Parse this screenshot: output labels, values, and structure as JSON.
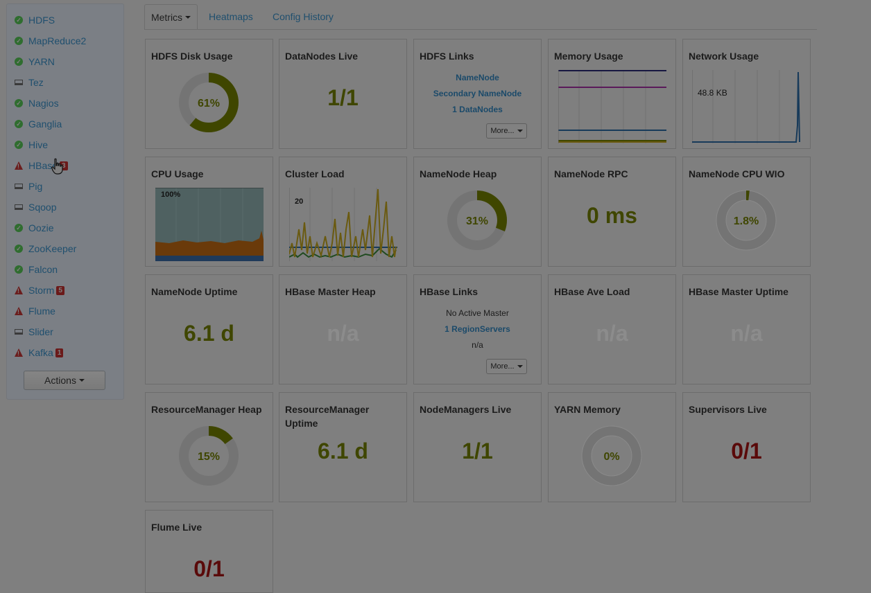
{
  "services": [
    {
      "name": "HDFS",
      "status": "ok"
    },
    {
      "name": "MapReduce2",
      "status": "ok"
    },
    {
      "name": "YARN",
      "status": "ok"
    },
    {
      "name": "Tez",
      "status": "client"
    },
    {
      "name": "Nagios",
      "status": "ok"
    },
    {
      "name": "Ganglia",
      "status": "ok"
    },
    {
      "name": "Hive",
      "status": "ok"
    },
    {
      "name": "HBase",
      "status": "alert",
      "badge": "3"
    },
    {
      "name": "Pig",
      "status": "client"
    },
    {
      "name": "Sqoop",
      "status": "client"
    },
    {
      "name": "Oozie",
      "status": "ok"
    },
    {
      "name": "ZooKeeper",
      "status": "ok"
    },
    {
      "name": "Falcon",
      "status": "ok"
    },
    {
      "name": "Storm",
      "status": "alert",
      "badge": "5"
    },
    {
      "name": "Flume",
      "status": "alert"
    },
    {
      "name": "Slider",
      "status": "client"
    },
    {
      "name": "Kafka",
      "status": "alert",
      "badge": "1"
    }
  ],
  "actions_label": "Actions",
  "tabs": {
    "metrics": "Metrics",
    "heatmaps": "Heatmaps",
    "config_history": "Config History"
  },
  "widgets": {
    "hdfs_disk": {
      "title": "HDFS Disk Usage",
      "value": "61%",
      "fraction": 0.61
    },
    "datanodes": {
      "title": "DataNodes Live",
      "value": "1/1"
    },
    "hdfs_links": {
      "title": "HDFS Links",
      "namenode": "NameNode",
      "secondary": "Secondary NameNode",
      "datanodes": "1 DataNodes",
      "more": "More..."
    },
    "memory": {
      "title": "Memory Usage"
    },
    "network": {
      "title": "Network Usage",
      "label": "48.8 KB"
    },
    "cpu": {
      "title": "CPU Usage",
      "label": "100%"
    },
    "cluster_load": {
      "title": "Cluster Load",
      "label": "20"
    },
    "nn_heap": {
      "title": "NameNode Heap",
      "value": "31%",
      "fraction": 0.31
    },
    "nn_rpc": {
      "title": "NameNode RPC",
      "value": "0 ms"
    },
    "nn_cpu": {
      "title": "NameNode CPU WIO",
      "value": "1.8%",
      "fraction": 0.018
    },
    "nn_uptime": {
      "title": "NameNode Uptime",
      "value": "6.1 d"
    },
    "hbase_heap": {
      "title": "HBase Master Heap",
      "value": "n/a"
    },
    "hbase_links": {
      "title": "HBase Links",
      "master": "No Active Master",
      "regionservers": "1 RegionServers",
      "na": "n/a",
      "more": "More..."
    },
    "hbase_load": {
      "title": "HBase Ave Load",
      "value": "n/a"
    },
    "hbase_uptime": {
      "title": "HBase Master Uptime",
      "value": "n/a"
    },
    "rm_heap": {
      "title": "ResourceManager Heap",
      "value": "15%",
      "fraction": 0.15
    },
    "rm_uptime": {
      "title": "ResourceManager Uptime",
      "value": "6.1 d"
    },
    "nm_live": {
      "title": "NodeManagers Live",
      "value": "1/1"
    },
    "yarn_mem": {
      "title": "YARN Memory",
      "value": "0%",
      "fraction": 0
    },
    "supervisors": {
      "title": "Supervisors Live",
      "value": "0/1"
    },
    "flume_live": {
      "title": "Flume Live",
      "value": "0/1"
    }
  }
}
